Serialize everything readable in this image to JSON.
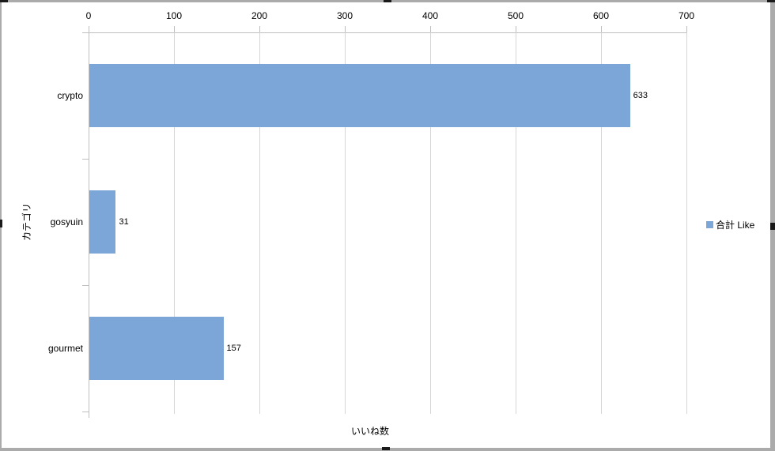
{
  "chart_data": {
    "type": "bar",
    "orientation": "horizontal",
    "title": "",
    "categories": [
      "crypto",
      "gosyuin",
      "gourmet"
    ],
    "series": [
      {
        "name": "合計 Like",
        "values": [
          633,
          31,
          157
        ]
      }
    ],
    "xlabel": "いいね数",
    "ylabel": "カテゴリ",
    "xlim": [
      0,
      700
    ],
    "x_ticks": [
      0,
      100,
      200,
      300,
      400,
      500,
      600,
      700
    ],
    "grid": true,
    "data_labels_shown": true,
    "legend": {
      "position": "right",
      "entries": [
        "合計 Like"
      ]
    },
    "colors": {
      "bar": "#7ca5d8",
      "gridline": "#d6d6d6",
      "axis": "#bfbfbf",
      "text": "#000000",
      "frame": "#ababab"
    }
  }
}
